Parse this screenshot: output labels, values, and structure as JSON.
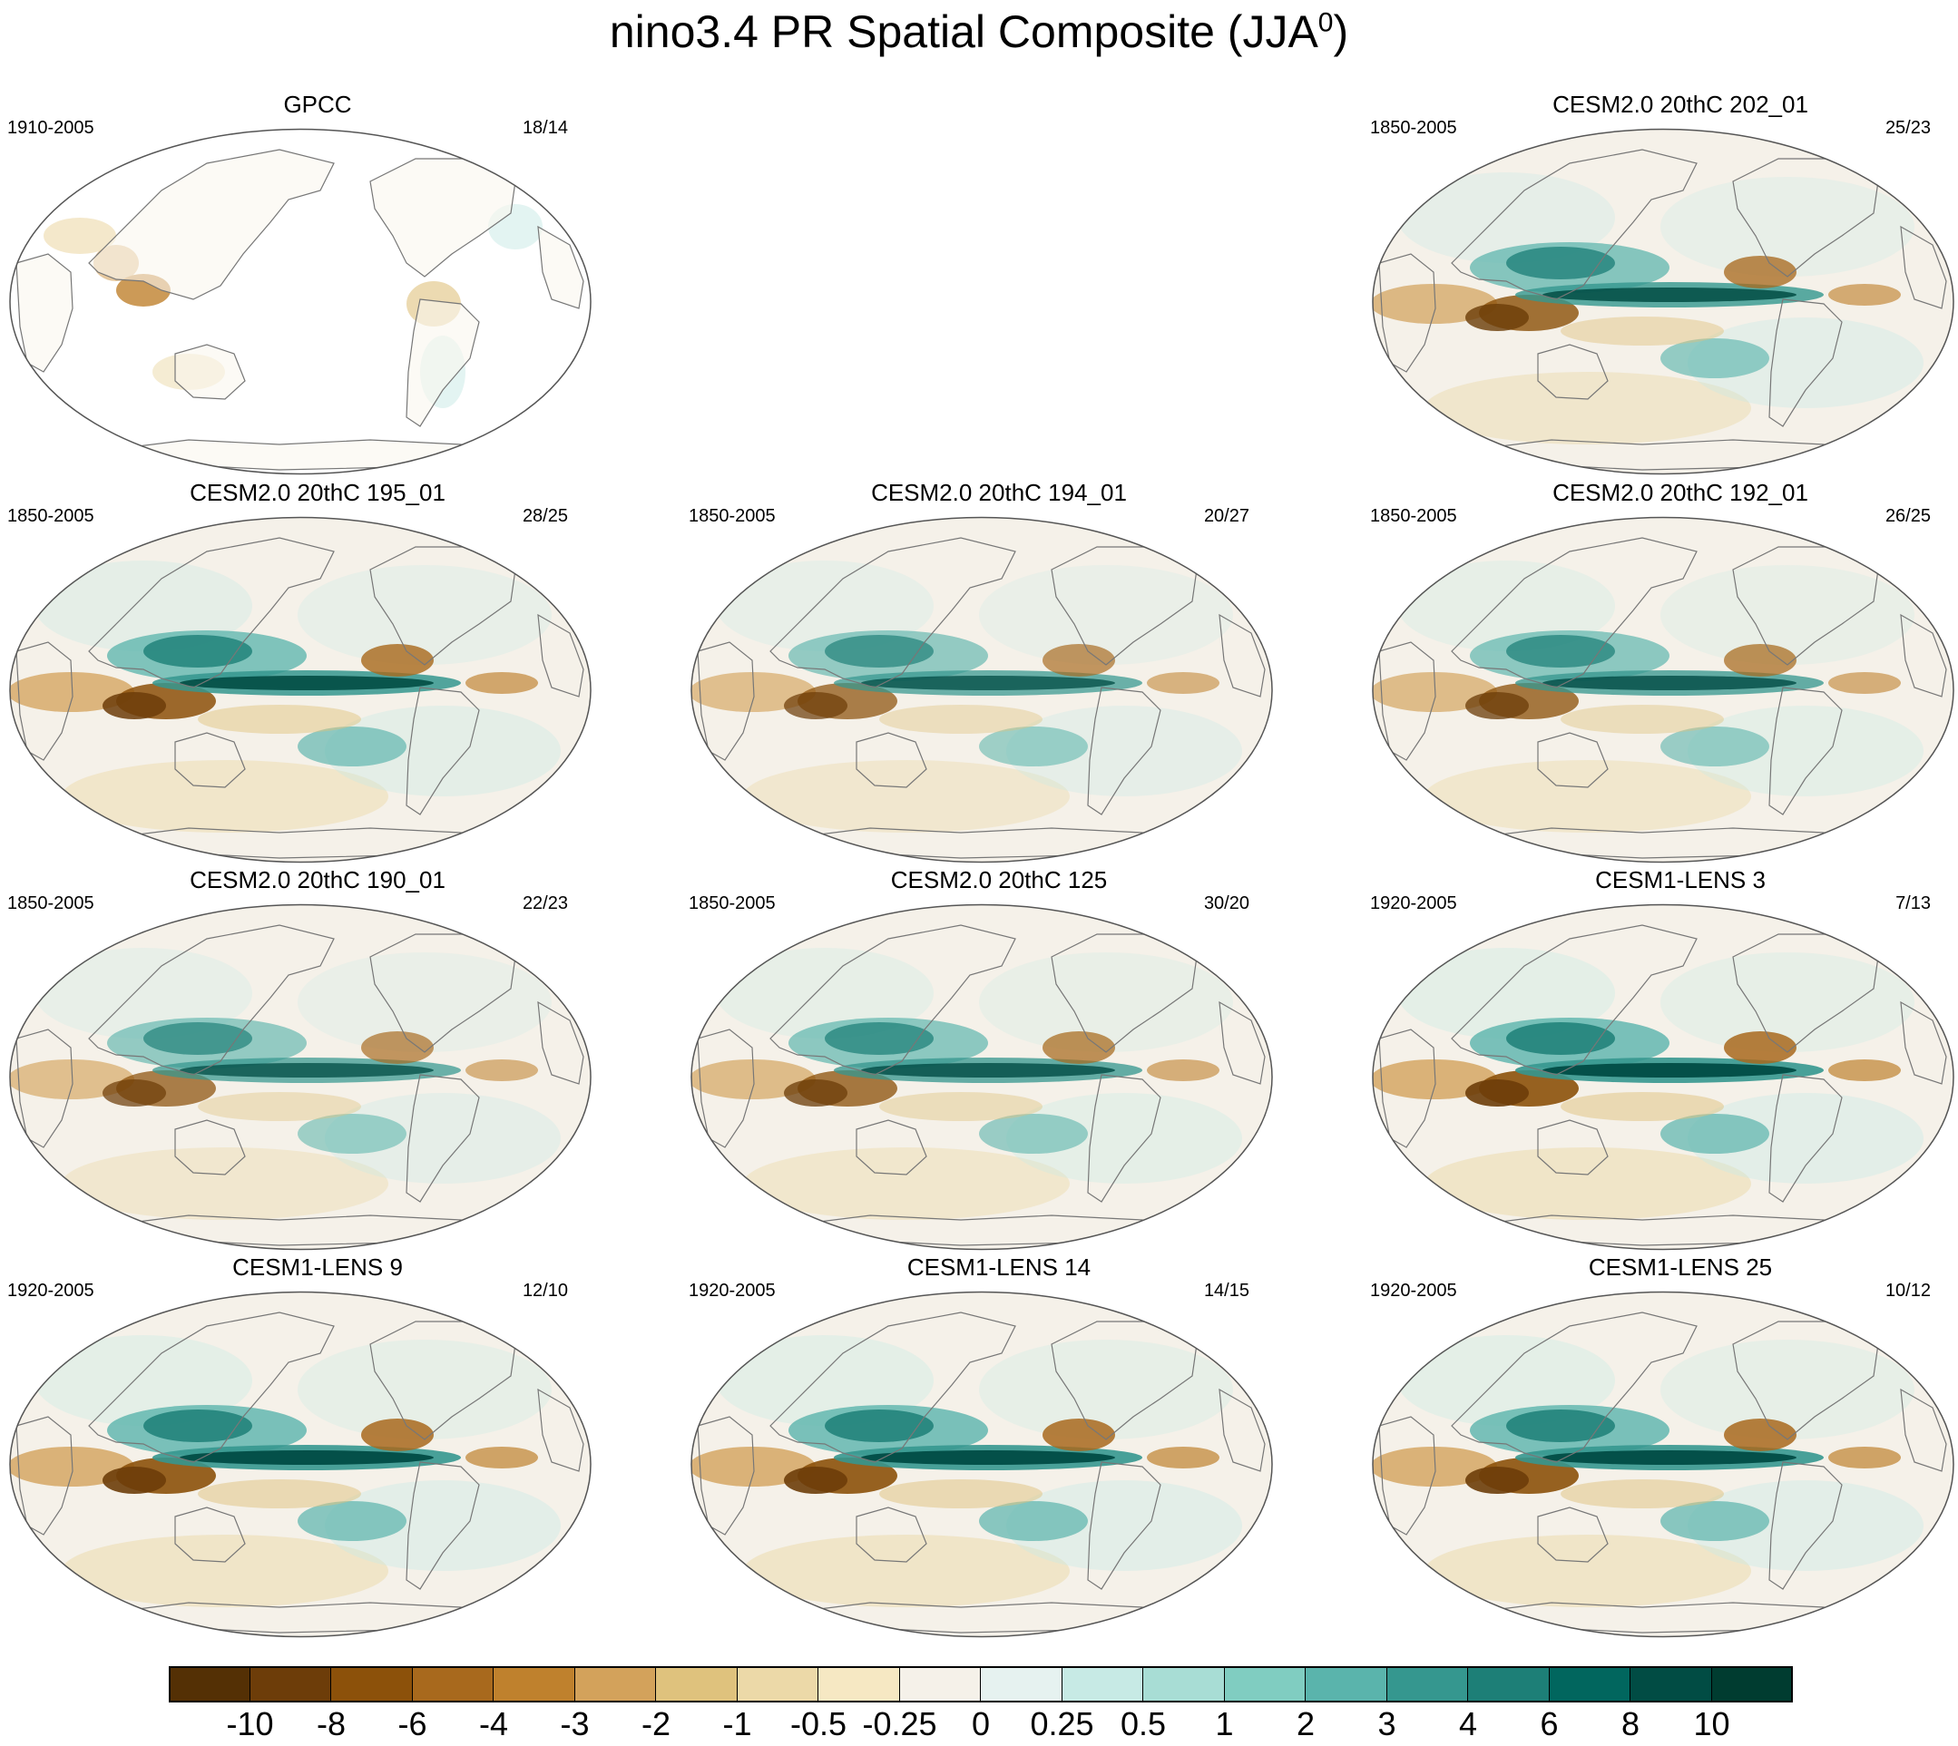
{
  "title": "nino3.4 PR Spatial Composite (JJA",
  "title_sup": "0",
  "title_close": ")",
  "panels": [
    {
      "title": "GPCC",
      "period": "1910-2005",
      "count": "18/14",
      "type": "obs",
      "intensity": 0.3
    },
    {
      "title": "CESM2.0 20thC 202_01",
      "period": "1850-2005",
      "count": "25/23",
      "type": "model",
      "intensity": 0.9
    },
    {
      "title": "CESM2.0 20thC 195_01",
      "period": "1850-2005",
      "count": "28/25",
      "type": "model",
      "intensity": 0.95
    },
    {
      "title": "CESM2.0 20thC 194_01",
      "period": "1850-2005",
      "count": "20/27",
      "type": "model",
      "intensity": 0.8
    },
    {
      "title": "CESM2.0 20thC 192_01",
      "period": "1850-2005",
      "count": "26/25",
      "type": "model",
      "intensity": 0.85
    },
    {
      "title": "CESM2.0 20thC 190_01",
      "period": "1850-2005",
      "count": "22/23",
      "type": "model",
      "intensity": 0.8
    },
    {
      "title": "CESM2.0 20thC 125",
      "period": "1850-2005",
      "count": "30/20",
      "type": "model",
      "intensity": 0.85
    },
    {
      "title": "CESM1-LENS 3",
      "period": "1920-2005",
      "count": "7/13",
      "type": "model",
      "intensity": 1.0
    },
    {
      "title": "CESM1-LENS 9",
      "period": "1920-2005",
      "count": "12/10",
      "type": "model",
      "intensity": 1.0
    },
    {
      "title": "CESM1-LENS 14",
      "period": "1920-2005",
      "count": "14/15",
      "type": "model",
      "intensity": 1.0
    },
    {
      "title": "CESM1-LENS 25",
      "period": "1920-2005",
      "count": "10/12",
      "type": "model",
      "intensity": 1.0
    }
  ],
  "colorbar": {
    "labels": [
      "-10",
      "-8",
      "-6",
      "-4",
      "-3",
      "-2",
      "-1",
      "-0.5",
      "-0.25",
      "0",
      "0.25",
      "0.5",
      "1",
      "2",
      "3",
      "4",
      "6",
      "8",
      "10"
    ],
    "colors": [
      "#543005",
      "#6d3d09",
      "#8c510a",
      "#a8691d",
      "#bf812d",
      "#d3a25b",
      "#dfc27d",
      "#ecd9a8",
      "#f6e8c3",
      "#f5f1e9",
      "#e6f2f0",
      "#c7eae5",
      "#a8ddd5",
      "#80cdc1",
      "#5ab4ac",
      "#35978f",
      "#1d7f77",
      "#01665e",
      "#014c44",
      "#003c30"
    ]
  },
  "colors": {
    "land_outline": "#777777",
    "map_background": "#f5f1e9",
    "border": "#555555"
  }
}
